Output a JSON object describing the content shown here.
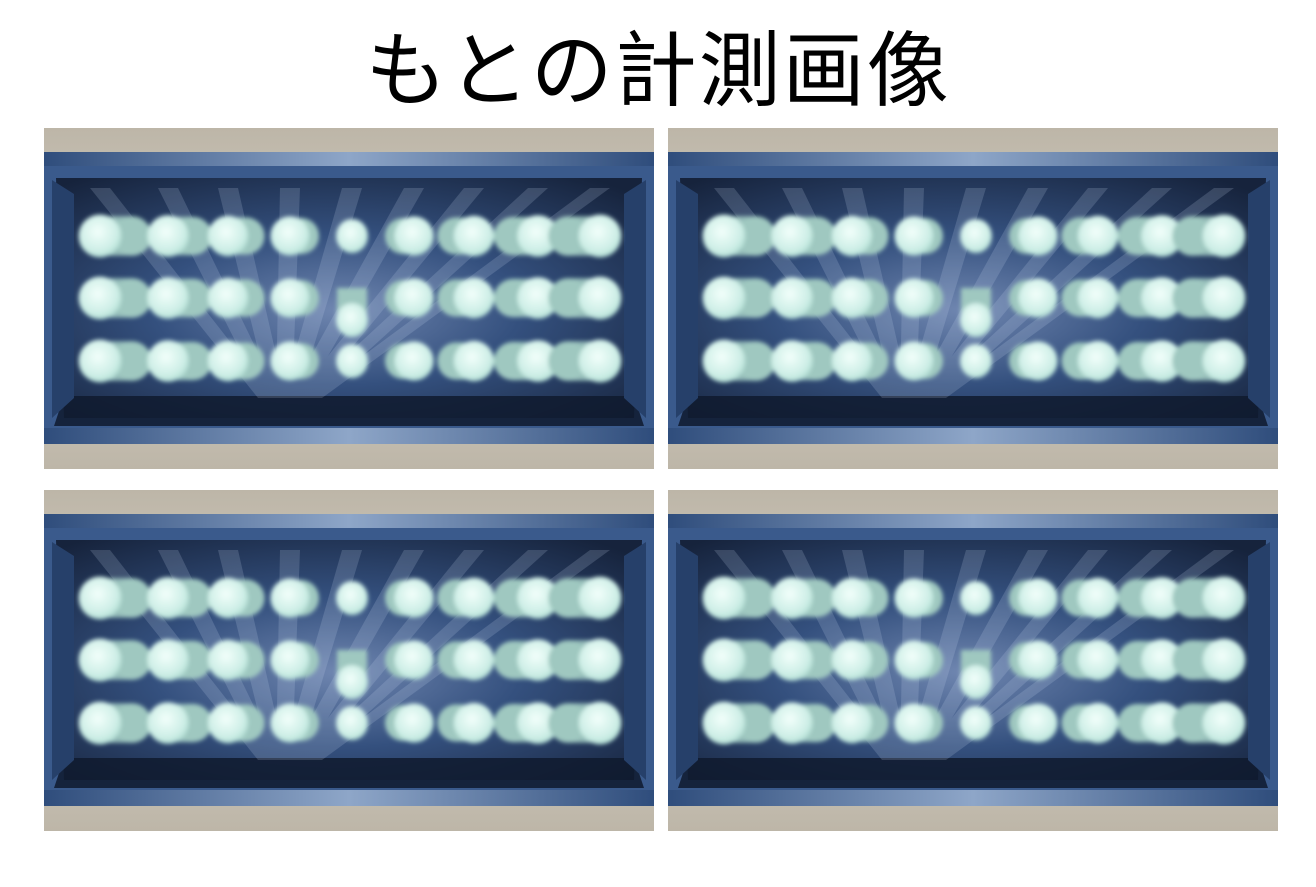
{
  "title": "もとの計測画像",
  "images": [
    {
      "name": "measurement-image-1"
    },
    {
      "name": "measurement-image-2"
    },
    {
      "name": "measurement-image-3"
    },
    {
      "name": "measurement-image-4"
    }
  ],
  "scene": {
    "rows": 3,
    "columns": 9,
    "colors": {
      "frame_beige": "#c8c2b6",
      "box_blue": "#3a5a8c",
      "box_dark": "#1a2740",
      "cylinder_cap": "#cdeee6",
      "cylinder_body": "#9fc8c0"
    }
  }
}
